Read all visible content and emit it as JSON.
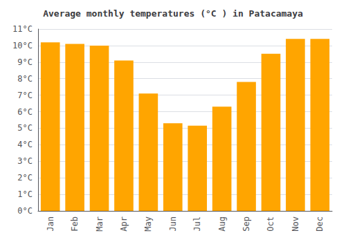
{
  "chart_data": {
    "type": "bar",
    "title": "Average monthly temperatures (°C ) in Patacamaya",
    "categories": [
      "Jan",
      "Feb",
      "Mar",
      "Apr",
      "May",
      "Jun",
      "Jul",
      "Aug",
      "Sep",
      "Oct",
      "Nov",
      "Dec"
    ],
    "values": [
      10.2,
      10.1,
      10.0,
      9.1,
      7.1,
      5.3,
      5.15,
      6.3,
      7.8,
      9.5,
      10.4,
      10.4
    ],
    "color": "#FFA500",
    "ylim": [
      0,
      11
    ],
    "yticks": [
      {
        "value": 0,
        "label": "0°C"
      },
      {
        "value": 1,
        "label": "1°C"
      },
      {
        "value": 2,
        "label": "2°C"
      },
      {
        "value": 3,
        "label": "3°C"
      },
      {
        "value": 4,
        "label": "4°C"
      },
      {
        "value": 5,
        "label": "5°C"
      },
      {
        "value": 6,
        "label": "6°C"
      },
      {
        "value": 7,
        "label": "7°C"
      },
      {
        "value": 8,
        "label": "8°C"
      },
      {
        "value": 9,
        "label": "9°C"
      },
      {
        "value": 10,
        "label": "10°C"
      },
      {
        "value": 11,
        "label": "11°C"
      }
    ],
    "grid": true
  }
}
